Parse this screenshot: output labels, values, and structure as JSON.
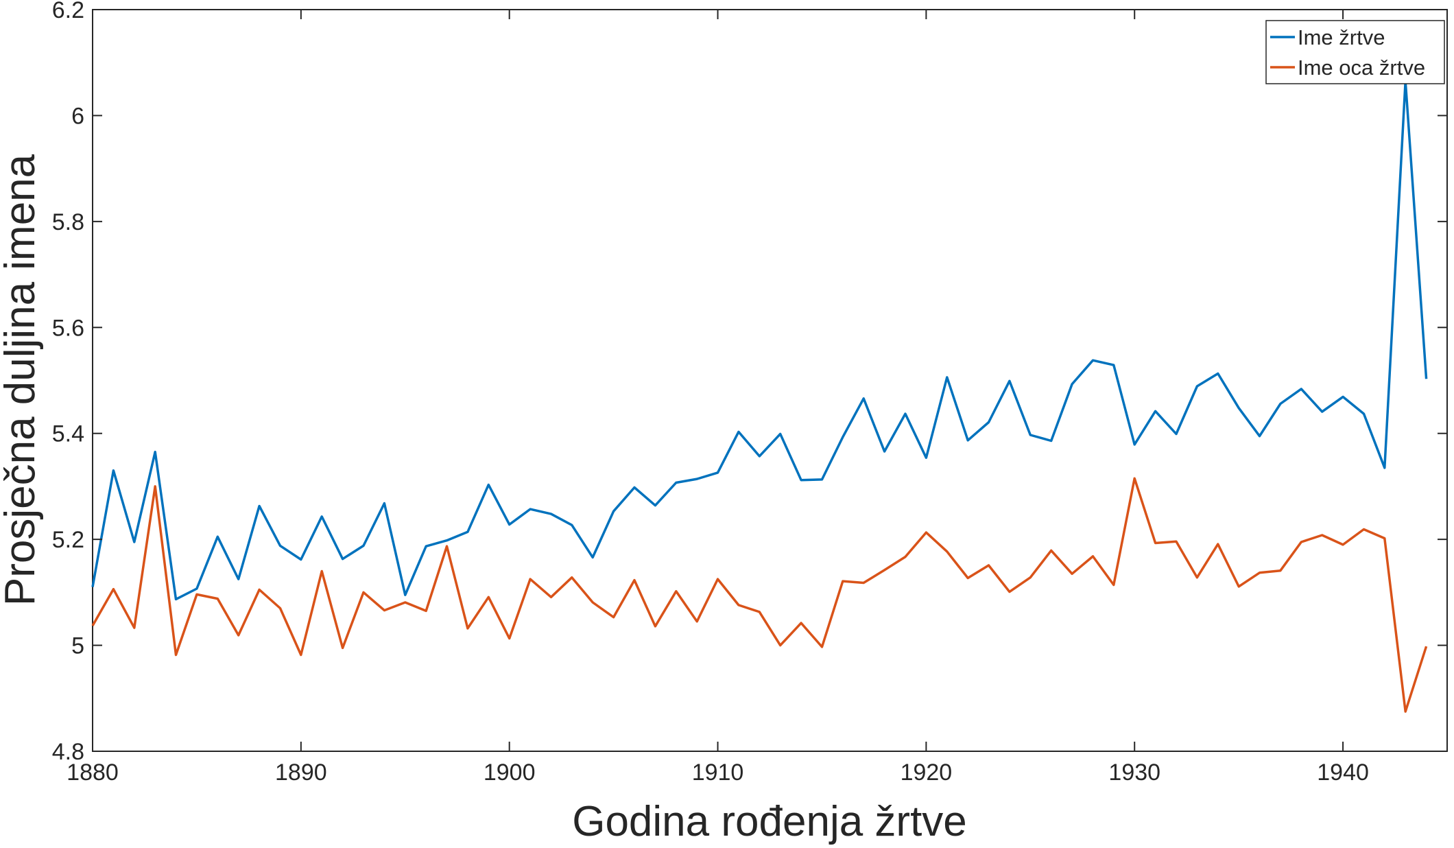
{
  "chart_data": {
    "type": "line",
    "title": "",
    "xlabel": "Godina rođenja žrtve",
    "ylabel": "Prosječna duljina imena",
    "xlim": [
      1880,
      1945
    ],
    "ylim": [
      4.8,
      6.2
    ],
    "xticks": [
      1880,
      1890,
      1900,
      1910,
      1920,
      1930,
      1940
    ],
    "yticks": [
      4.8,
      5,
      5.2,
      5.4,
      5.6,
      5.8,
      6,
      6.2
    ],
    "grid": false,
    "legend_position": "top-right",
    "x": [
      1880,
      1881,
      1882,
      1883,
      1884,
      1885,
      1886,
      1887,
      1888,
      1889,
      1890,
      1891,
      1892,
      1893,
      1894,
      1895,
      1896,
      1897,
      1898,
      1899,
      1900,
      1901,
      1902,
      1903,
      1904,
      1905,
      1906,
      1907,
      1908,
      1909,
      1910,
      1911,
      1912,
      1913,
      1914,
      1915,
      1916,
      1917,
      1918,
      1919,
      1920,
      1921,
      1922,
      1923,
      1924,
      1925,
      1926,
      1927,
      1928,
      1929,
      1930,
      1931,
      1932,
      1933,
      1934,
      1935,
      1936,
      1937,
      1938,
      1939,
      1940,
      1941,
      1942,
      1943,
      1944
    ],
    "series": [
      {
        "name": "Ime žrtve",
        "color": "#0072BD",
        "values": [
          5.11,
          5.33,
          5.195,
          5.365,
          5.087,
          5.107,
          5.205,
          5.125,
          5.263,
          5.188,
          5.162,
          5.243,
          5.163,
          5.188,
          5.268,
          5.095,
          5.187,
          5.198,
          5.214,
          5.303,
          5.228,
          5.257,
          5.248,
          5.227,
          5.166,
          5.253,
          5.298,
          5.264,
          5.307,
          5.314,
          5.326,
          5.403,
          5.357,
          5.399,
          5.312,
          5.313,
          5.393,
          5.466,
          5.366,
          5.437,
          5.354,
          5.506,
          5.387,
          5.421,
          5.499,
          5.397,
          5.386,
          5.493,
          5.538,
          5.529,
          5.379,
          5.442,
          5.399,
          5.489,
          5.513,
          5.448,
          5.395,
          5.456,
          5.484,
          5.441,
          5.469,
          5.437,
          5.335,
          6.065,
          5.503
        ]
      },
      {
        "name": "Ime oca žrtve",
        "color": "#D95319",
        "values": [
          5.037,
          5.106,
          5.033,
          5.3,
          4.982,
          5.096,
          5.088,
          5.019,
          5.105,
          5.07,
          4.982,
          5.14,
          4.995,
          5.1,
          5.066,
          5.081,
          5.065,
          5.187,
          5.032,
          5.091,
          5.013,
          5.125,
          5.091,
          5.128,
          5.081,
          5.053,
          5.123,
          5.036,
          5.102,
          5.045,
          5.125,
          5.076,
          5.063,
          5.0,
          5.042,
          4.997,
          5.121,
          5.118,
          5.142,
          5.167,
          5.213,
          5.177,
          5.127,
          5.151,
          5.101,
          5.128,
          5.179,
          5.135,
          5.168,
          5.114,
          5.315,
          5.193,
          5.196,
          5.128,
          5.191,
          5.111,
          5.137,
          5.141,
          5.195,
          5.208,
          5.19,
          5.219,
          5.202,
          4.875,
          4.998
        ]
      }
    ]
  }
}
